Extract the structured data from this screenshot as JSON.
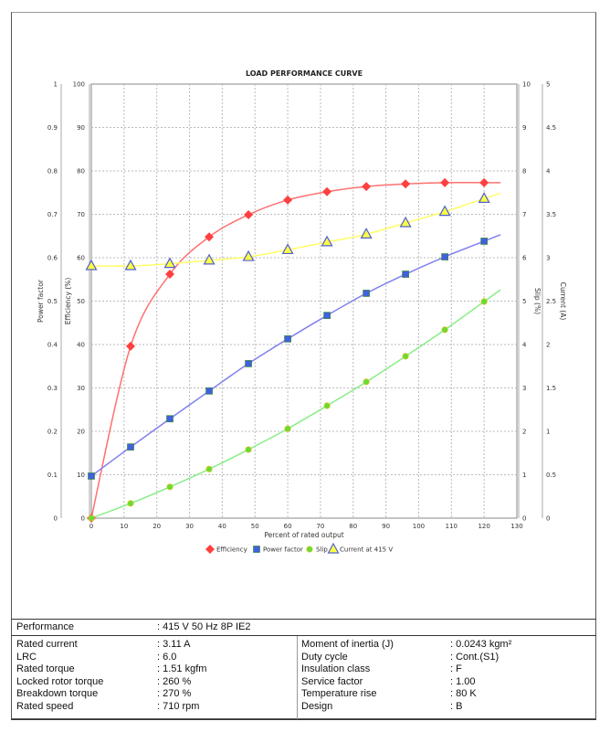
{
  "chart_data": {
    "type": "line",
    "title": "LOAD PERFORMANCE CURVE",
    "xlabel": "Percent of rated output",
    "xlim": [
      0,
      130
    ],
    "xticks": [
      0,
      10,
      20,
      30,
      40,
      50,
      60,
      70,
      80,
      90,
      100,
      110,
      120,
      130
    ],
    "grid": true,
    "legend_placement": "bottom",
    "axes": {
      "power_factor": {
        "label": "Power factor",
        "side": "left-outer",
        "range": [
          0,
          1
        ],
        "ticks": [
          "0",
          "0.1",
          "0.2",
          "0.3",
          "0.4",
          "0.5",
          "0.6",
          "0.7",
          "0.8",
          "0.9",
          "1"
        ]
      },
      "efficiency": {
        "label": "Efficiency (%)",
        "side": "left",
        "range": [
          0,
          100
        ],
        "ticks": [
          "0",
          "10",
          "20",
          "30",
          "40",
          "50",
          "60",
          "70",
          "80",
          "90",
          "100"
        ]
      },
      "slip": {
        "label": "Slip (%)",
        "side": "right",
        "range": [
          0,
          10
        ],
        "ticks": [
          "0",
          "1",
          "2",
          "3",
          "4",
          "5",
          "6",
          "7",
          "8",
          "9",
          "10"
        ]
      },
      "current": {
        "label": "Current (A)",
        "side": "right-outer",
        "range": [
          0,
          5
        ],
        "ticks": [
          "0",
          "0.5",
          "1",
          "1.5",
          "2",
          "2.5",
          "3",
          "3.5",
          "4",
          "4.5",
          "5"
        ]
      }
    },
    "x": [
      0,
      12,
      24,
      36,
      48,
      60,
      72,
      84,
      96,
      108,
      120
    ],
    "series": [
      {
        "name": "Efficiency",
        "axis": "efficiency",
        "color": "#ff4040",
        "marker": "diamond",
        "values": [
          0,
          39.6,
          56.2,
          64.8,
          69.9,
          73.3,
          75.2,
          76.4,
          77.0,
          77.3,
          77.3
        ]
      },
      {
        "name": "Power factor",
        "axis": "power_factor",
        "color": "#4060e0",
        "marker": "square",
        "values": [
          0.097,
          0.164,
          0.229,
          0.293,
          0.356,
          0.413,
          0.467,
          0.518,
          0.562,
          0.602,
          0.638
        ]
      },
      {
        "name": "Slip",
        "axis": "slip",
        "color": "#66dd33",
        "marker": "circle",
        "values": [
          0,
          0.34,
          0.72,
          1.13,
          1.58,
          2.06,
          2.59,
          3.14,
          3.73,
          4.34,
          4.99
        ]
      },
      {
        "name": "Current at 415 V",
        "axis": "current",
        "color": "#ffff44",
        "marker": "triangle",
        "values": [
          2.905,
          2.905,
          2.93,
          2.97,
          3.01,
          3.09,
          3.18,
          3.27,
          3.4,
          3.53,
          3.68
        ]
      }
    ]
  },
  "table": {
    "performance_label": "Performance",
    "performance_value": ": 415 V 50 Hz 8P IE2",
    "left": [
      {
        "label": "Rated current",
        "value": ": 3.11 A"
      },
      {
        "label": "LRC",
        "value": ": 6.0"
      },
      {
        "label": "Rated torque",
        "value": ": 1.51 kgfm"
      },
      {
        "label": "Locked rotor torque",
        "value": ": 260 %"
      },
      {
        "label": "Breakdown torque",
        "value": ": 270 %"
      },
      {
        "label": "Rated speed",
        "value": ": 710 rpm"
      }
    ],
    "right": [
      {
        "label": "Moment of inertia (J)",
        "value": ": 0.0243 kgm²"
      },
      {
        "label": "Duty cycle",
        "value": ": Cont.(S1)"
      },
      {
        "label": "Insulation class",
        "value": ": F"
      },
      {
        "label": "Service factor",
        "value": ": 1.00"
      },
      {
        "label": "Temperature rise",
        "value": ": 80 K"
      },
      {
        "label": "Design",
        "value": ": B"
      }
    ]
  }
}
